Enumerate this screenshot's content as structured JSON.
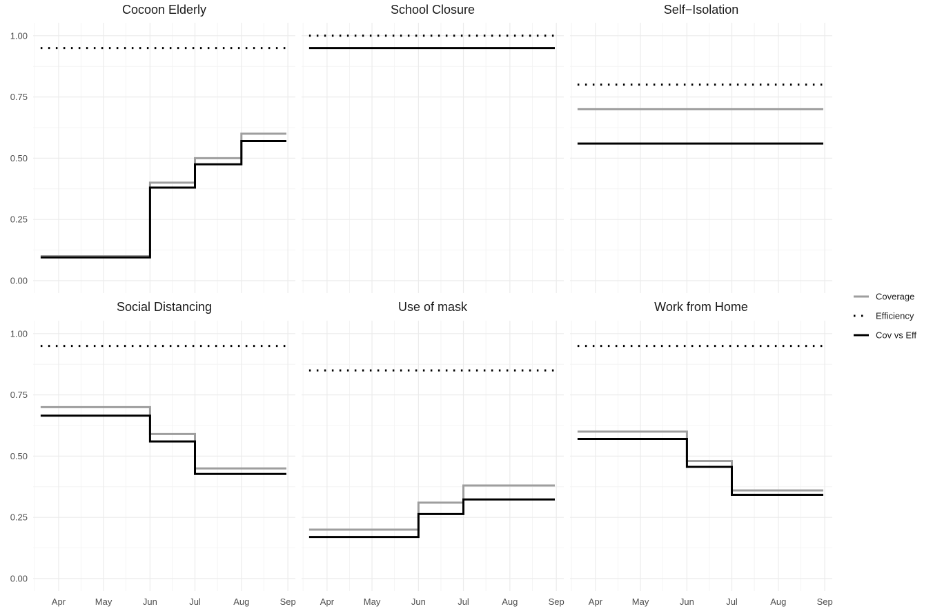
{
  "chart_data": {
    "type": "line",
    "layout": "facet-grid-2x3",
    "x_ticks": [
      "Apr",
      "May",
      "Jun",
      "Jul",
      "Aug",
      "Sep"
    ],
    "x_range": [
      "2020-03-15",
      "2020-09-06"
    ],
    "y_ticks": [
      "0.00",
      "0.25",
      "0.50",
      "0.75",
      "1.00"
    ],
    "ylim": [
      0,
      1.05
    ],
    "grid": true,
    "legend_position": "right",
    "legend": [
      {
        "name": "Coverage",
        "style": "solid",
        "color": "#9e9e9e"
      },
      {
        "name": "Efficiency",
        "style": "dotted",
        "color": "#000000"
      },
      {
        "name": "Cov vs Eff",
        "style": "solid",
        "color": "#000000"
      }
    ],
    "panels": [
      {
        "title": "Cocoon Elderly",
        "coverage": [
          [
            "2020-03-20",
            0.1
          ],
          [
            "2020-06-01",
            0.4
          ],
          [
            "2020-07-01",
            0.5
          ],
          [
            "2020-08-01",
            0.6
          ],
          [
            "2020-08-31",
            0.6
          ]
        ],
        "efficiency": [
          [
            "2020-03-20",
            0.95
          ],
          [
            "2020-08-31",
            0.95
          ]
        ],
        "cov_vs_eff": [
          [
            "2020-03-20",
            0.095
          ],
          [
            "2020-06-01",
            0.38
          ],
          [
            "2020-07-01",
            0.475
          ],
          [
            "2020-08-01",
            0.57
          ],
          [
            "2020-08-31",
            0.57
          ]
        ]
      },
      {
        "title": "School Closure",
        "coverage": [],
        "efficiency": [
          [
            "2020-03-20",
            1.0
          ],
          [
            "2020-08-31",
            1.0
          ]
        ],
        "cov_vs_eff": [
          [
            "2020-03-20",
            0.95
          ],
          [
            "2020-08-31",
            0.95
          ]
        ]
      },
      {
        "title": "Self−Isolation",
        "coverage": [
          [
            "2020-03-20",
            0.7
          ],
          [
            "2020-08-31",
            0.7
          ]
        ],
        "efficiency": [
          [
            "2020-03-20",
            0.8
          ],
          [
            "2020-08-31",
            0.8
          ]
        ],
        "cov_vs_eff": [
          [
            "2020-03-20",
            0.56
          ],
          [
            "2020-08-31",
            0.56
          ]
        ]
      },
      {
        "title": "Social Distancing",
        "coverage": [
          [
            "2020-03-20",
            0.7
          ],
          [
            "2020-06-01",
            0.59
          ],
          [
            "2020-07-01",
            0.45
          ],
          [
            "2020-08-31",
            0.45
          ]
        ],
        "efficiency": [
          [
            "2020-03-20",
            0.95
          ],
          [
            "2020-08-31",
            0.95
          ]
        ],
        "cov_vs_eff": [
          [
            "2020-03-20",
            0.665
          ],
          [
            "2020-06-01",
            0.56
          ],
          [
            "2020-07-01",
            0.4275
          ],
          [
            "2020-08-31",
            0.4275
          ]
        ]
      },
      {
        "title": "Use of mask",
        "coverage": [
          [
            "2020-03-20",
            0.2
          ],
          [
            "2020-06-01",
            0.31
          ],
          [
            "2020-07-01",
            0.38
          ],
          [
            "2020-08-31",
            0.38
          ]
        ],
        "efficiency": [
          [
            "2020-03-20",
            0.85
          ],
          [
            "2020-08-31",
            0.85
          ]
        ],
        "cov_vs_eff": [
          [
            "2020-03-20",
            0.17
          ],
          [
            "2020-06-01",
            0.2635
          ],
          [
            "2020-07-01",
            0.323
          ],
          [
            "2020-08-31",
            0.323
          ]
        ]
      },
      {
        "title": "Work from Home",
        "coverage": [
          [
            "2020-03-20",
            0.6
          ],
          [
            "2020-06-01",
            0.48
          ],
          [
            "2020-07-01",
            0.36
          ],
          [
            "2020-08-31",
            0.36
          ]
        ],
        "efficiency": [
          [
            "2020-03-20",
            0.95
          ],
          [
            "2020-08-31",
            0.95
          ]
        ],
        "cov_vs_eff": [
          [
            "2020-03-20",
            0.57
          ],
          [
            "2020-06-01",
            0.456
          ],
          [
            "2020-07-01",
            0.342
          ],
          [
            "2020-08-31",
            0.342
          ]
        ]
      }
    ]
  }
}
